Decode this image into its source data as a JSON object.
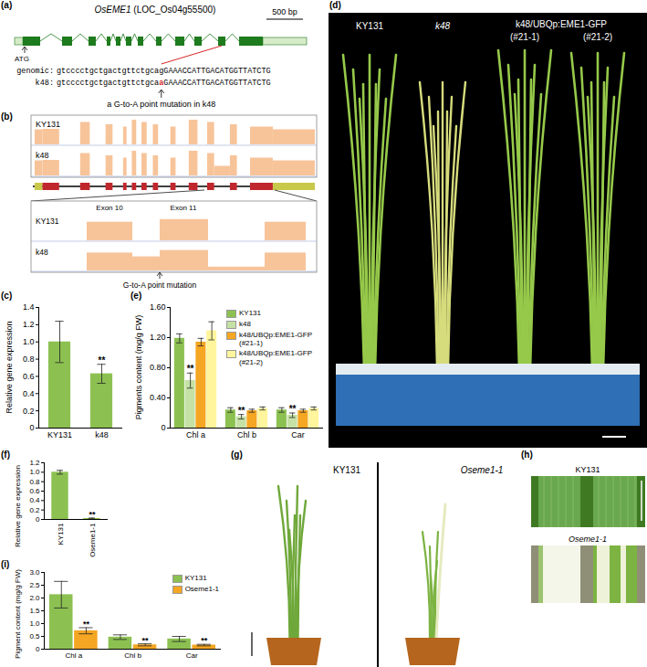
{
  "chart_data": [
    {
      "panel": "(c)",
      "type": "bar",
      "y_label": "Relative gene expression",
      "categories": [
        "KY131",
        "k48"
      ],
      "values": [
        1.0,
        0.63
      ],
      "error": [
        0.24,
        0.11
      ],
      "significance": [
        null,
        "**"
      ],
      "color": "#8cc152",
      "ylim": [
        0,
        1.4
      ],
      "yticks": [
        0,
        0.2,
        0.4,
        0.6,
        0.8,
        {
          "value": 1.0,
          "label": "1.0"
        },
        1.2,
        1.4
      ]
    },
    {
      "panel": "(e)",
      "type": "bar",
      "y_label": "Pigments content (mg/g FW)",
      "categories": [
        "Chl a",
        "Chl b",
        "Car"
      ],
      "series": [
        {
          "name": "KY131",
          "color": "#8cc152",
          "values": [
            1.19,
            0.24,
            0.24
          ],
          "error": [
            0.06,
            0.03,
            0.03
          ]
        },
        {
          "name": "k48",
          "color": "#c5e1a5",
          "values": [
            0.63,
            0.15,
            0.17
          ],
          "error": [
            0.1,
            0.03,
            0.03
          ],
          "significance": [
            "**",
            "**",
            "**"
          ]
        },
        {
          "name": "k48/UBQp:EME1-GFP (#21-1)",
          "color": "#f5a623",
          "values": [
            1.14,
            0.23,
            0.23
          ],
          "error": [
            0.05,
            0.02,
            0.02
          ]
        },
        {
          "name": "k48/UBQp:EME1-GFP (#21-2)",
          "color": "#fff59d",
          "values": [
            1.29,
            0.26,
            0.26
          ],
          "error": [
            0.12,
            0.02,
            0.02
          ]
        }
      ],
      "legend": "top-right",
      "ylim": [
        0,
        1.6
      ],
      "yticks": [
        0,
        {
          "value": 0.4,
          "label": "0.40"
        },
        {
          "value": 0.8,
          "label": "0.80"
        },
        {
          "value": 1.2,
          "label": "1.20"
        },
        {
          "value": 1.6,
          "label": "1.60"
        }
      ]
    },
    {
      "panel": "(f)",
      "type": "bar",
      "y_label": "Relative gene expression",
      "categories": [
        "KY131",
        "Oseme1-1"
      ],
      "values": [
        1.0,
        0.02
      ],
      "error": [
        0.04,
        0.01
      ],
      "significance": [
        null,
        "**"
      ],
      "color": "#8cc152",
      "ylim": [
        0,
        1.2
      ],
      "yticks": [
        0,
        0.2,
        0.4,
        0.6,
        0.8,
        {
          "value": 1.0,
          "label": "1.0"
        },
        1.2
      ]
    },
    {
      "panel": "(i)",
      "type": "bar",
      "y_label": "Pigment content (mg/g FW)",
      "categories": [
        "Chl a",
        "Chl b",
        "Car"
      ],
      "series": [
        {
          "name": "KY131",
          "color": "#8cc152",
          "values": [
            2.13,
            0.47,
            0.4
          ],
          "error": [
            0.52,
            0.09,
            0.1
          ]
        },
        {
          "name": "Oseme1-1",
          "color": "#f5a623",
          "values": [
            0.72,
            0.17,
            0.16
          ],
          "error": [
            0.12,
            0.04,
            0.03
          ],
          "significance": [
            "**",
            "**",
            "**"
          ]
        }
      ],
      "legend": "top-right",
      "ylim": [
        0,
        3.0
      ],
      "yticks": [
        0,
        0.5,
        {
          "value": 1.0,
          "label": "1.0"
        },
        1.5,
        {
          "value": 2.0,
          "label": "2.0"
        },
        2.5,
        {
          "value": 3.0,
          "label": "3.0"
        }
      ]
    }
  ],
  "panels": {
    "a": {
      "label": "(a)",
      "title": "OsEME1 (LOC_Os04g55500)",
      "scale_bar": "500 bp",
      "start_codon": "ATG",
      "sequences": [
        {
          "label": "genomic:",
          "sequence": "gtcccctgctgactgttctgcagGAAACCATTGACATGGTTATCTG"
        },
        {
          "label": "k48:",
          "sequence": "gtcccctgctgactgttctgcaaGAAACCATTGACATGGTTATCTG"
        }
      ],
      "note": "a G-to-A point mutation in k48"
    },
    "b": {
      "label": "(b)",
      "tracks": [
        "KY131",
        "k48"
      ],
      "exons": [
        "Exon 10",
        "Exon 11"
      ],
      "note": "G-to-A point mutation"
    },
    "d": {
      "label": "(d)",
      "plants": [
        "KY131",
        "k48"
      ],
      "transgenic": "k48/UBQp:EME1-GFP",
      "lines": [
        "(#21-1)",
        "(#21-2)"
      ]
    },
    "g": {
      "label": "(g)",
      "plants": [
        "KY131",
        "Oseme1-1"
      ]
    },
    "h": {
      "label": "(h)",
      "plants": [
        "KY131",
        "Oseme1-1"
      ]
    }
  }
}
